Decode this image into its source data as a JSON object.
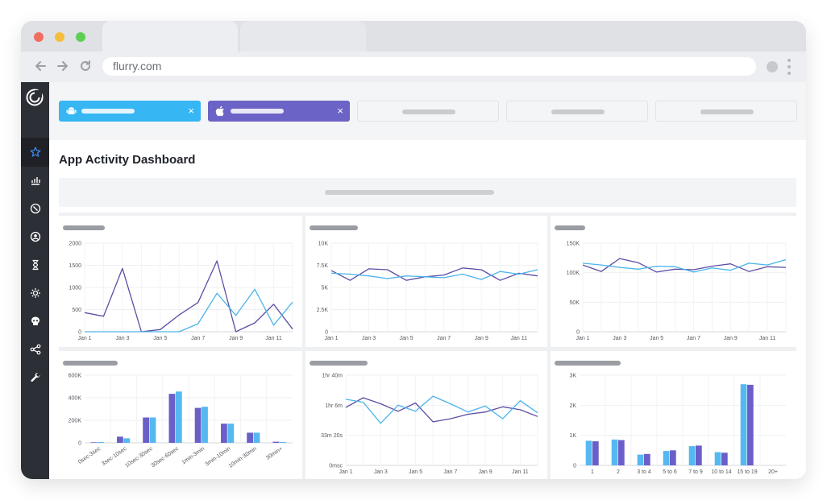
{
  "browser": {
    "url": "flurry.com",
    "icons": {
      "back": "arrow-left-icon",
      "forward": "arrow-right-icon",
      "reload": "reload-icon",
      "menu": "kebab-menu-icon"
    },
    "traffic_light_colors": [
      "#f26d61",
      "#f6bd3b",
      "#5fcf54"
    ]
  },
  "sidebar": {
    "logo": "flurry-logo",
    "items": [
      {
        "icon": "star-icon",
        "active": true
      },
      {
        "icon": "bar-chart-icon"
      },
      {
        "icon": "compass-icon"
      },
      {
        "icon": "user-circle-icon"
      },
      {
        "icon": "hourglass-icon"
      },
      {
        "icon": "sun-icon"
      },
      {
        "icon": "skull-icon"
      },
      {
        "icon": "share-nodes-icon"
      },
      {
        "icon": "wrench-icon"
      }
    ]
  },
  "filters": [
    {
      "platform": "android",
      "icon": "android-icon",
      "color": "#36b6f3",
      "close": "×"
    },
    {
      "platform": "ios",
      "icon": "apple-icon",
      "color": "#6c63c6",
      "close": "×"
    },
    {
      "platform": "",
      "empty": true
    },
    {
      "platform": "",
      "empty": true
    },
    {
      "platform": "",
      "empty": true
    }
  ],
  "page_title": "App Activity Dashboard",
  "colors": {
    "purple": "#5b4ea3",
    "blue": "#4ab4ea",
    "bar_purple": "#6a5fc9",
    "bar_blue": "#56b8f0"
  },
  "chart_data": [
    {
      "type": "line",
      "x": [
        "Jan 1",
        "Jan 2",
        "Jan 3",
        "Jan 4",
        "Jan 5",
        "Jan 6",
        "Jan 7",
        "Jan 8",
        "Jan 9",
        "Jan 10",
        "Jan 11",
        "Jan 12"
      ],
      "xticks": [
        "Jan 1",
        "Jan 3",
        "Jan 5",
        "Jan 7",
        "Jan 9",
        "Jan 11"
      ],
      "ylim": [
        0,
        2000
      ],
      "yticks": [
        "0",
        "500",
        "1000",
        "1500",
        "2000"
      ],
      "series": [
        {
          "color": "#5b4ea3",
          "values": [
            430,
            350,
            1430,
            0,
            50,
            380,
            660,
            1600,
            0,
            200,
            620,
            60
          ]
        },
        {
          "color": "#4ab4ea",
          "values": [
            0,
            0,
            0,
            0,
            0,
            0,
            180,
            870,
            370,
            960,
            150,
            670
          ]
        }
      ]
    },
    {
      "type": "line",
      "x": [
        "Jan 1",
        "Jan 2",
        "Jan 3",
        "Jan 4",
        "Jan 5",
        "Jan 6",
        "Jan 7",
        "Jan 8",
        "Jan 9",
        "Jan 10",
        "Jan 11",
        "Jan 12"
      ],
      "xticks": [
        "Jan 1",
        "Jan 3",
        "Jan 5",
        "Jan 7",
        "Jan 9",
        "Jan 11"
      ],
      "ylim": [
        0,
        10000
      ],
      "yticks": [
        "0",
        "2.5K",
        "5K",
        "7.5K",
        "10K"
      ],
      "series": [
        {
          "color": "#5b4ea3",
          "values": [
            6900,
            5800,
            7100,
            7000,
            5800,
            6200,
            6400,
            7200,
            7000,
            5800,
            6600,
            6300
          ]
        },
        {
          "color": "#4ab4ea",
          "values": [
            6600,
            6500,
            6300,
            6000,
            6300,
            6200,
            6100,
            6500,
            5900,
            6800,
            6500,
            7000
          ]
        }
      ]
    },
    {
      "type": "line",
      "x": [
        "Jan 1",
        "Jan 2",
        "Jan 3",
        "Jan 4",
        "Jan 5",
        "Jan 6",
        "Jan 7",
        "Jan 8",
        "Jan 9",
        "Jan 10",
        "Jan 11",
        "Jan 12"
      ],
      "xticks": [
        "Jan 1",
        "Jan 3",
        "Jan 5",
        "Jan 7",
        "Jan 9",
        "Jan 11"
      ],
      "ylim": [
        0,
        150000
      ],
      "yticks": [
        "0",
        "50K",
        "100K",
        "150K"
      ],
      "series": [
        {
          "color": "#5b4ea3",
          "values": [
            113000,
            102000,
            124000,
            117000,
            101000,
            106000,
            105000,
            111000,
            115000,
            102000,
            110000,
            109000
          ]
        },
        {
          "color": "#4ab4ea",
          "values": [
            116000,
            113000,
            109000,
            106000,
            111000,
            110000,
            101000,
            108000,
            104000,
            116000,
            113000,
            122000
          ]
        }
      ]
    },
    {
      "type": "bar",
      "categories": [
        "0sec-3sec",
        "3sec-10sec",
        "10sec-30sec",
        "30sec-60sec",
        "1min-3min",
        "3min-10min",
        "10min-30min",
        "30min+"
      ],
      "ylim": [
        0,
        600000
      ],
      "yticks": [
        "0",
        "200K",
        "400K",
        "600K"
      ],
      "series": [
        {
          "color": "#6a5fc9",
          "values": [
            5000,
            55000,
            225000,
            435000,
            310000,
            170000,
            90000,
            10000
          ]
        },
        {
          "color": "#56b8f0",
          "values": [
            8000,
            40000,
            225000,
            455000,
            320000,
            170000,
            90000,
            8000
          ]
        }
      ]
    },
    {
      "type": "line",
      "x": [
        "Jan 1",
        "Jan 2",
        "Jan 3",
        "Jan 4",
        "Jan 5",
        "Jan 6",
        "Jan 7",
        "Jan 8",
        "Jan 9",
        "Jan 10",
        "Jan 11",
        "Jan 12"
      ],
      "xticks": [
        "Jan 1",
        "Jan 3",
        "Jan 5",
        "Jan 7",
        "Jan 9",
        "Jan 11"
      ],
      "ylim": [
        0,
        6000
      ],
      "yticks": [
        "0msc",
        "33m 20s",
        "1hr 6m",
        "1hr 40m"
      ],
      "ytick_values": [
        0,
        2000,
        4000,
        6000
      ],
      "series": [
        {
          "color": "#5b4ea3",
          "values": [
            3850,
            4500,
            4100,
            3600,
            4150,
            2900,
            3100,
            3400,
            3550,
            3900,
            3700,
            3250
          ]
        },
        {
          "color": "#4ab4ea",
          "values": [
            4400,
            4200,
            2800,
            4000,
            3600,
            4600,
            4100,
            3550,
            3950,
            3100,
            4300,
            3500
          ]
        }
      ]
    },
    {
      "type": "bar",
      "categories": [
        "1",
        "2",
        "3 to 4",
        "5 to 6",
        "7 to 9",
        "10 to 14",
        "15 to 19",
        "20+"
      ],
      "ylim": [
        0,
        3000
      ],
      "yticks": [
        "0",
        "1K",
        "2K",
        "3K"
      ],
      "series": [
        {
          "color": "#56b8f0",
          "values": [
            820,
            860,
            360,
            480,
            640,
            440,
            2700,
            0
          ]
        },
        {
          "color": "#6a5fc9",
          "values": [
            800,
            840,
            380,
            500,
            660,
            420,
            2680,
            0
          ]
        }
      ]
    }
  ]
}
